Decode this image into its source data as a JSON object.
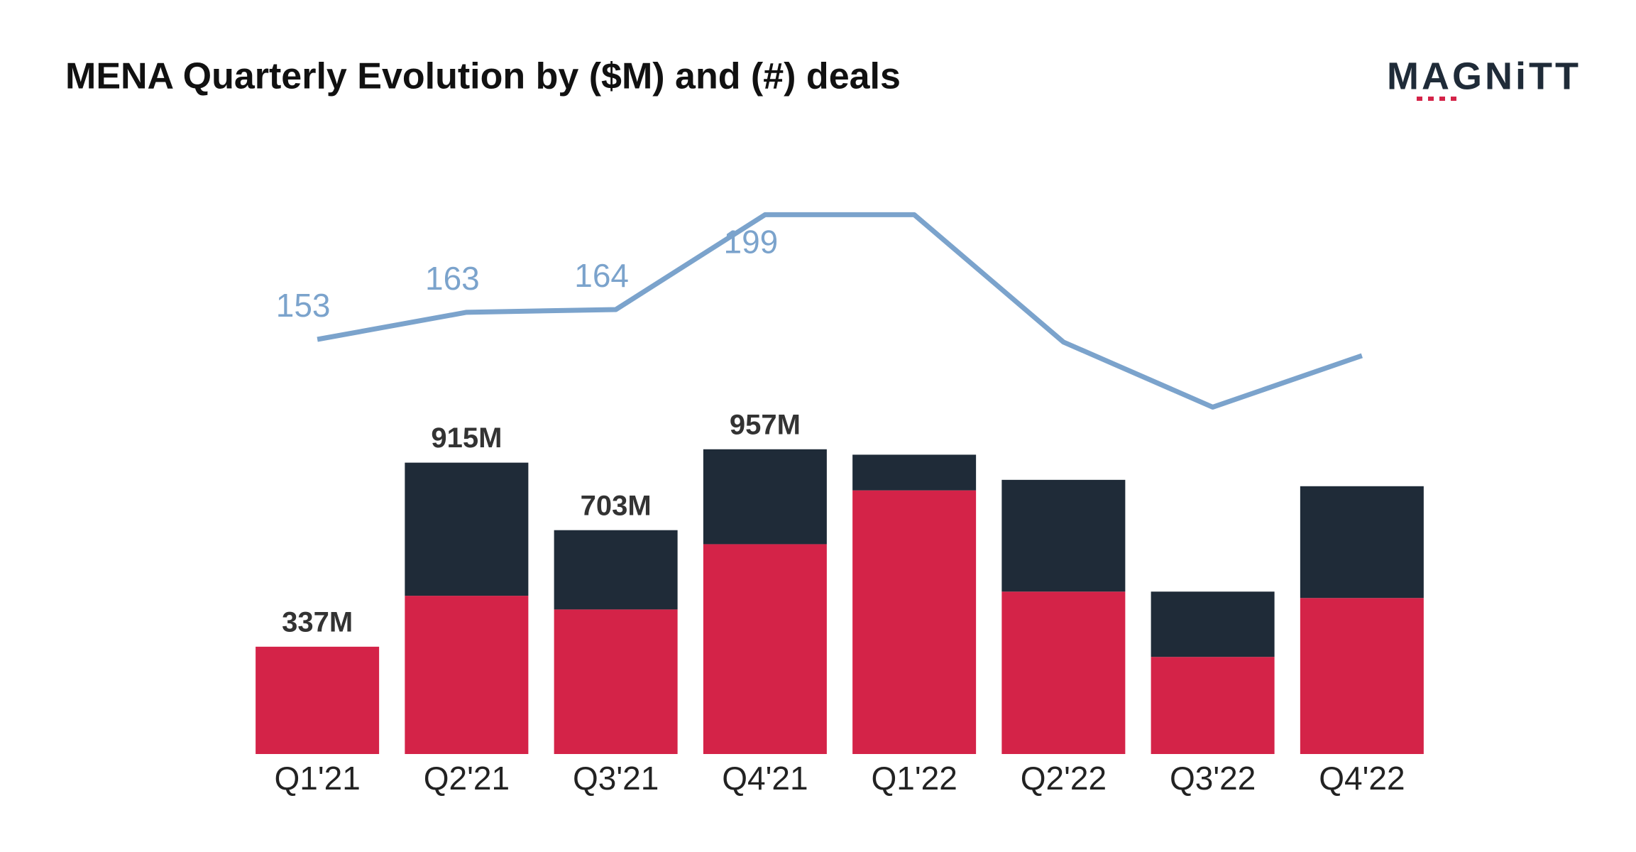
{
  "chart_data": {
    "type": "bar",
    "title": "MENA Quarterly Evolution by ($M) and (#) deals",
    "logo": "MAGNiTT",
    "categories": [
      "Q1'21",
      "Q2'21",
      "Q3'21",
      "Q4'21",
      "Q1'22",
      "Q2'22",
      "Q3'22",
      "Q4'22"
    ],
    "series": [
      {
        "type": "bar",
        "color": "#d42348",
        "values": [
          337,
          497,
          454,
          659,
          828,
          510,
          305,
          490
        ]
      },
      {
        "type": "bar",
        "color": "#1f2b38",
        "values": [
          0,
          418,
          249,
          298,
          112,
          351,
          205,
          351
        ]
      },
      {
        "type": "line",
        "axis": "y2",
        "color": "#7ba3cc",
        "values": [
          153,
          163,
          164,
          199,
          199,
          152,
          128,
          147
        ],
        "value_labels": [
          "153",
          "163",
          "164",
          "199",
          null,
          null,
          null,
          null
        ]
      }
    ],
    "total_labels": [
      "337M",
      "915M",
      "703M",
      "957M",
      null,
      null,
      null,
      null
    ],
    "ylim": [
      0,
      2000
    ],
    "y2lim": [
      0,
      235
    ]
  }
}
